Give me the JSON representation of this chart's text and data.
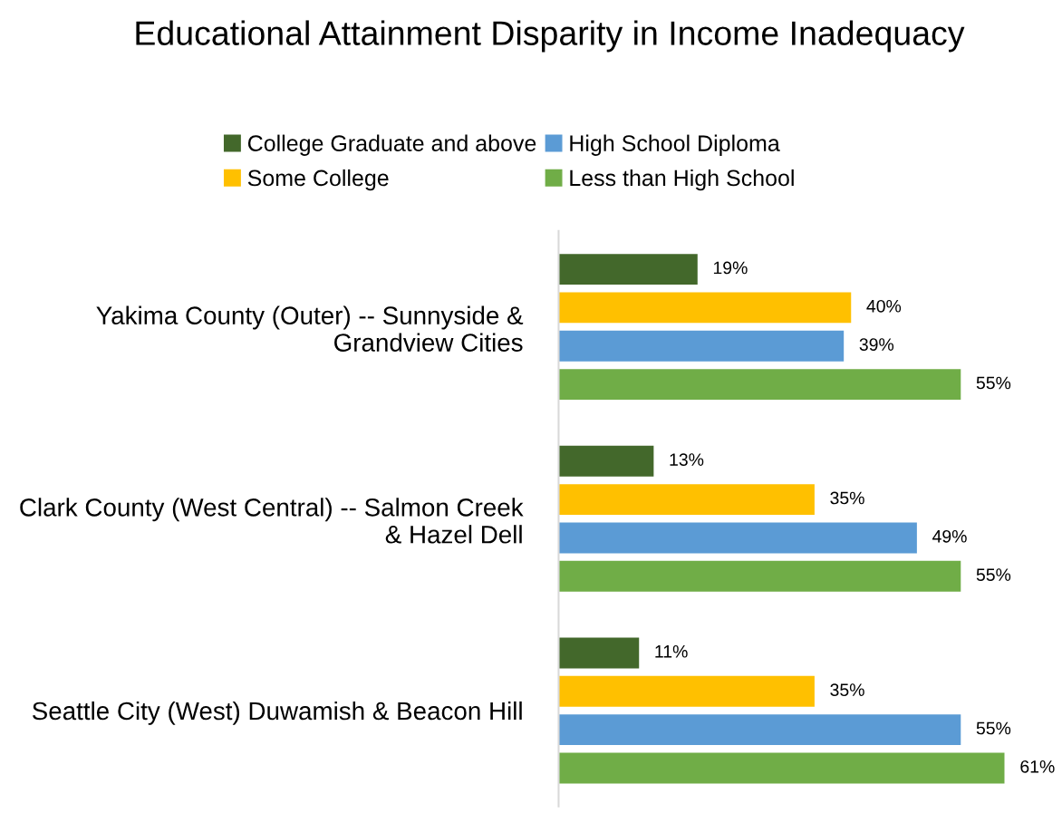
{
  "chart_data": {
    "type": "bar",
    "orientation": "horizontal",
    "title": "Educational Attainment Disparity in Income Inadequacy",
    "categories": [
      "Yakima County (Outer) -- Sunnyside & Grandview Cities",
      "Clark County (West Central) -- Salmon Creek & Hazel Dell",
      "Seattle City (West) Duwamish & Beacon Hill"
    ],
    "series": [
      {
        "name": "College Graduate and above",
        "color": "#43682b",
        "values": [
          19,
          13,
          11
        ],
        "value_labels": [
          "19%",
          "13%",
          "11%"
        ]
      },
      {
        "name": "Some College",
        "color": "#ffc000",
        "values": [
          40,
          35,
          35
        ],
        "value_labels": [
          "40%",
          "35%",
          "35%"
        ]
      },
      {
        "name": "High School Diploma",
        "color": "#5b9bd5",
        "values": [
          39,
          49,
          55
        ],
        "value_labels": [
          "39%",
          "49%",
          "55%"
        ]
      },
      {
        "name": "Less than High School",
        "color": "#70ad47",
        "values": [
          55,
          55,
          61
        ],
        "value_labels": [
          "55%",
          "55%",
          "61%"
        ]
      }
    ],
    "legend": "top",
    "grid": false,
    "tick_labels": "y"
  }
}
